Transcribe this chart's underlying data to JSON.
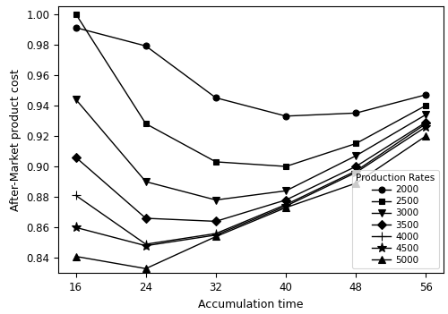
{
  "x": [
    16,
    24,
    32,
    40,
    48,
    56
  ],
  "series": [
    {
      "label": "2000",
      "marker": "o",
      "values": [
        0.991,
        0.979,
        0.945,
        0.933,
        0.935,
        0.947
      ]
    },
    {
      "label": "2500",
      "marker": "s",
      "values": [
        1.0,
        0.928,
        0.903,
        0.9,
        0.915,
        0.94
      ]
    },
    {
      "label": "3000",
      "marker": "v",
      "values": [
        0.944,
        0.89,
        0.878,
        0.884,
        0.907,
        0.934
      ]
    },
    {
      "label": "3500",
      "marker": "D",
      "values": [
        0.906,
        0.866,
        0.864,
        0.878,
        0.9,
        0.929
      ]
    },
    {
      "label": "4000",
      "marker": "+",
      "values": [
        0.881,
        0.849,
        0.856,
        0.875,
        0.897,
        0.928
      ]
    },
    {
      "label": "4500",
      "marker": "*",
      "values": [
        0.86,
        0.848,
        0.855,
        0.874,
        0.896,
        0.926
      ]
    },
    {
      "label": "5000",
      "marker": "^",
      "values": [
        0.841,
        0.833,
        0.854,
        0.873,
        0.889,
        0.92
      ]
    }
  ],
  "xlabel": "Accumulation time",
  "ylabel": "After-Market product cost",
  "legend_title": "Production Rates",
  "xlim": [
    14,
    58
  ],
  "ylim": [
    0.83,
    1.005
  ],
  "xticks": [
    16,
    24,
    32,
    40,
    48,
    56
  ],
  "yticks": [
    0.84,
    0.86,
    0.88,
    0.9,
    0.92,
    0.94,
    0.96,
    0.98,
    1.0
  ],
  "color": "#000000",
  "linewidth": 1.0,
  "markersize": 5
}
